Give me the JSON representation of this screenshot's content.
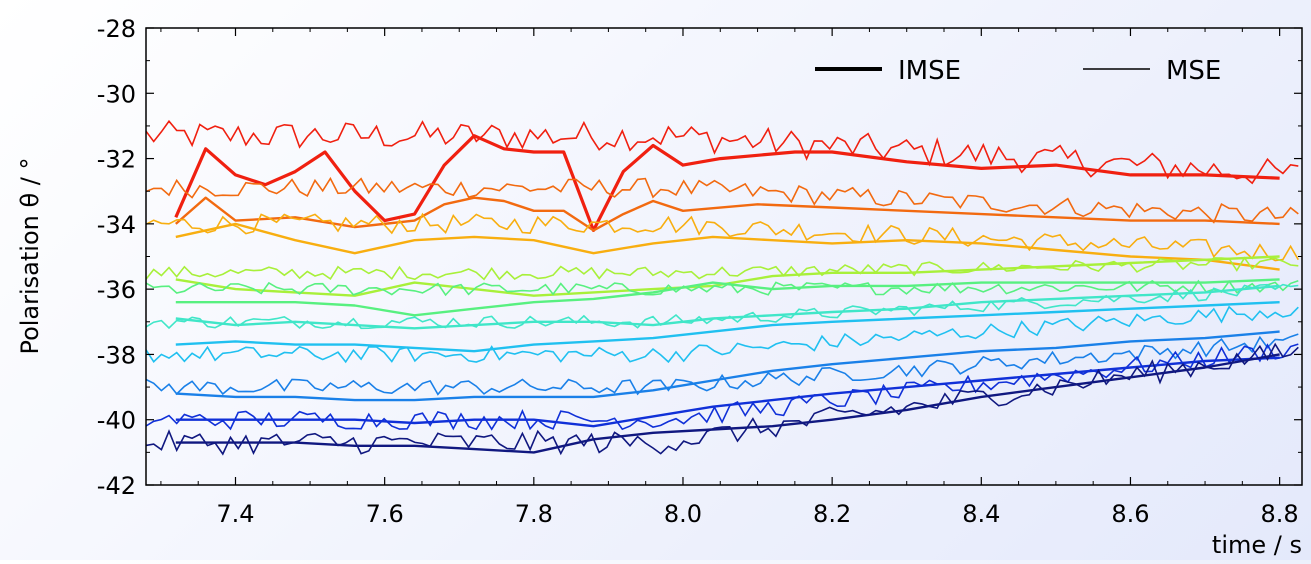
{
  "chart_data": {
    "type": "line",
    "xlabel": "time / s",
    "ylabel": "Polarisation θ / °",
    "xlim": [
      7.28,
      8.83
    ],
    "ylim": [
      -42,
      -28
    ],
    "x_ticks": [
      7.4,
      7.6,
      7.8,
      8.0,
      8.2,
      8.4,
      8.6,
      8.8
    ],
    "y_ticks": [
      -28,
      -30,
      -32,
      -34,
      -36,
      -38,
      -40,
      -42
    ],
    "x_tick_labels": [
      "7.4",
      "7.6",
      "7.8",
      "8.0",
      "8.2",
      "8.4",
      "8.6",
      "8.8"
    ],
    "y_tick_labels": [
      "-28",
      "-30",
      "-32",
      "-34",
      "-36",
      "-38",
      "-40",
      "-42"
    ],
    "grid": false,
    "legend": {
      "placement": "top-right",
      "entries": [
        {
          "label": "IMSE",
          "style": "thick"
        },
        {
          "label": "MSE",
          "style": "thin"
        }
      ]
    },
    "channels": [
      {
        "color": "#f02010",
        "imse": [
          [
            7.32,
            -33.8
          ],
          [
            7.36,
            -31.7
          ],
          [
            7.4,
            -32.5
          ],
          [
            7.44,
            -32.8
          ],
          [
            7.48,
            -32.4
          ],
          [
            7.52,
            -31.8
          ],
          [
            7.56,
            -33.0
          ],
          [
            7.6,
            -33.9
          ],
          [
            7.64,
            -33.7
          ],
          [
            7.68,
            -32.2
          ],
          [
            7.72,
            -31.3
          ],
          [
            7.76,
            -31.7
          ],
          [
            7.8,
            -31.8
          ],
          [
            7.84,
            -31.8
          ],
          [
            7.88,
            -34.2
          ],
          [
            7.92,
            -32.4
          ],
          [
            7.96,
            -31.6
          ],
          [
            8.0,
            -32.2
          ],
          [
            8.05,
            -32.0
          ],
          [
            8.1,
            -31.9
          ],
          [
            8.15,
            -31.8
          ],
          [
            8.2,
            -31.8
          ],
          [
            8.3,
            -32.1
          ],
          [
            8.4,
            -32.3
          ],
          [
            8.5,
            -32.2
          ],
          [
            8.6,
            -32.5
          ],
          [
            8.7,
            -32.5
          ],
          [
            8.8,
            -32.6
          ]
        ],
        "mse_base": -31.3,
        "mse_end": -32.5,
        "mse_noise": 0.45
      },
      {
        "color": "#f26a10",
        "imse": [
          [
            7.32,
            -34.0
          ],
          [
            7.36,
            -33.2
          ],
          [
            7.4,
            -33.9
          ],
          [
            7.48,
            -33.8
          ],
          [
            7.56,
            -34.1
          ],
          [
            7.64,
            -33.9
          ],
          [
            7.68,
            -33.4
          ],
          [
            7.72,
            -33.2
          ],
          [
            7.76,
            -33.3
          ],
          [
            7.8,
            -33.6
          ],
          [
            7.84,
            -33.6
          ],
          [
            7.88,
            -34.2
          ],
          [
            7.92,
            -33.7
          ],
          [
            7.96,
            -33.3
          ],
          [
            8.0,
            -33.6
          ],
          [
            8.1,
            -33.4
          ],
          [
            8.2,
            -33.5
          ],
          [
            8.3,
            -33.6
          ],
          [
            8.4,
            -33.7
          ],
          [
            8.5,
            -33.8
          ],
          [
            8.6,
            -33.9
          ],
          [
            8.7,
            -33.9
          ],
          [
            8.8,
            -34.0
          ]
        ],
        "mse_base": -32.9,
        "mse_end": -33.8,
        "mse_noise": 0.3
      },
      {
        "color": "#f8ae10",
        "imse": [
          [
            7.32,
            -34.4
          ],
          [
            7.4,
            -34.0
          ],
          [
            7.48,
            -34.5
          ],
          [
            7.56,
            -34.9
          ],
          [
            7.64,
            -34.5
          ],
          [
            7.72,
            -34.4
          ],
          [
            7.8,
            -34.5
          ],
          [
            7.88,
            -34.9
          ],
          [
            7.96,
            -34.6
          ],
          [
            8.04,
            -34.4
          ],
          [
            8.12,
            -34.5
          ],
          [
            8.2,
            -34.6
          ],
          [
            8.3,
            -34.5
          ],
          [
            8.4,
            -34.6
          ],
          [
            8.5,
            -34.8
          ],
          [
            8.6,
            -35.0
          ],
          [
            8.7,
            -35.1
          ],
          [
            8.8,
            -35.4
          ]
        ],
        "mse_base": -34.0,
        "mse_end": -34.9,
        "mse_noise": 0.3
      },
      {
        "color": "#a8f03a",
        "imse": [
          [
            7.32,
            -35.7
          ],
          [
            7.4,
            -36.0
          ],
          [
            7.48,
            -36.1
          ],
          [
            7.56,
            -36.2
          ],
          [
            7.64,
            -35.8
          ],
          [
            7.72,
            -36.0
          ],
          [
            7.8,
            -36.2
          ],
          [
            7.88,
            -36.1
          ],
          [
            7.96,
            -36.0
          ],
          [
            8.04,
            -35.9
          ],
          [
            8.12,
            -35.6
          ],
          [
            8.2,
            -35.5
          ],
          [
            8.3,
            -35.5
          ],
          [
            8.4,
            -35.4
          ],
          [
            8.5,
            -35.3
          ],
          [
            8.6,
            -35.2
          ],
          [
            8.7,
            -35.1
          ],
          [
            8.8,
            -35.0
          ]
        ],
        "mse_base": -35.5,
        "mse_end": -35.2,
        "mse_noise": 0.2
      },
      {
        "color": "#58f080",
        "imse": [
          [
            7.32,
            -36.4
          ],
          [
            7.4,
            -36.4
          ],
          [
            7.48,
            -36.4
          ],
          [
            7.56,
            -36.5
          ],
          [
            7.64,
            -36.8
          ],
          [
            7.72,
            -36.6
          ],
          [
            7.8,
            -36.4
          ],
          [
            7.88,
            -36.3
          ],
          [
            7.96,
            -36.1
          ],
          [
            8.04,
            -35.8
          ],
          [
            8.12,
            -36.0
          ],
          [
            8.2,
            -35.9
          ],
          [
            8.3,
            -35.9
          ],
          [
            8.4,
            -35.8
          ],
          [
            8.5,
            -35.8
          ],
          [
            8.6,
            -35.8
          ],
          [
            8.7,
            -35.8
          ],
          [
            8.8,
            -35.7
          ]
        ],
        "mse_base": -36.0,
        "mse_end": -35.9,
        "mse_noise": 0.2
      },
      {
        "color": "#40e6c8",
        "imse": [
          [
            7.32,
            -36.9
          ],
          [
            7.4,
            -37.1
          ],
          [
            7.48,
            -37.0
          ],
          [
            7.56,
            -37.1
          ],
          [
            7.64,
            -37.2
          ],
          [
            7.72,
            -37.1
          ],
          [
            7.8,
            -37.0
          ],
          [
            7.88,
            -37.0
          ],
          [
            7.96,
            -37.1
          ],
          [
            8.04,
            -36.9
          ],
          [
            8.12,
            -36.8
          ],
          [
            8.2,
            -36.7
          ],
          [
            8.3,
            -36.6
          ],
          [
            8.4,
            -36.4
          ],
          [
            8.5,
            -36.3
          ],
          [
            8.6,
            -36.2
          ],
          [
            8.7,
            -36.1
          ],
          [
            8.8,
            -35.9
          ]
        ],
        "mse_base": -37.0,
        "mse_end": -36.0,
        "mse_noise": 0.2
      },
      {
        "color": "#20c0f0",
        "imse": [
          [
            7.32,
            -37.7
          ],
          [
            7.4,
            -37.6
          ],
          [
            7.48,
            -37.7
          ],
          [
            7.56,
            -37.7
          ],
          [
            7.64,
            -37.8
          ],
          [
            7.72,
            -37.9
          ],
          [
            7.8,
            -37.7
          ],
          [
            7.88,
            -37.6
          ],
          [
            7.96,
            -37.5
          ],
          [
            8.04,
            -37.3
          ],
          [
            8.12,
            -37.1
          ],
          [
            8.2,
            -37.0
          ],
          [
            8.3,
            -36.9
          ],
          [
            8.4,
            -36.8
          ],
          [
            8.5,
            -36.7
          ],
          [
            8.6,
            -36.6
          ],
          [
            8.7,
            -36.5
          ],
          [
            8.8,
            -36.4
          ]
        ],
        "mse_base": -38.0,
        "mse_end": -36.6,
        "mse_noise": 0.25
      },
      {
        "color": "#1a80e8",
        "imse": [
          [
            7.32,
            -39.2
          ],
          [
            7.4,
            -39.3
          ],
          [
            7.48,
            -39.3
          ],
          [
            7.56,
            -39.4
          ],
          [
            7.64,
            -39.4
          ],
          [
            7.72,
            -39.3
          ],
          [
            7.8,
            -39.3
          ],
          [
            7.88,
            -39.3
          ],
          [
            7.96,
            -39.1
          ],
          [
            8.04,
            -38.8
          ],
          [
            8.12,
            -38.5
          ],
          [
            8.2,
            -38.3
          ],
          [
            8.3,
            -38.1
          ],
          [
            8.4,
            -37.9
          ],
          [
            8.5,
            -37.8
          ],
          [
            8.6,
            -37.6
          ],
          [
            8.7,
            -37.5
          ],
          [
            8.8,
            -37.3
          ]
        ],
        "mse_base": -39.0,
        "mse_end": -37.6,
        "mse_noise": 0.25
      },
      {
        "color": "#1030d8",
        "imse": [
          [
            7.32,
            -40.0
          ],
          [
            7.4,
            -40.0
          ],
          [
            7.48,
            -40.0
          ],
          [
            7.56,
            -40.0
          ],
          [
            7.64,
            -40.1
          ],
          [
            7.72,
            -40.0
          ],
          [
            7.8,
            -40.0
          ],
          [
            7.88,
            -40.2
          ],
          [
            7.96,
            -39.9
          ],
          [
            8.04,
            -39.6
          ],
          [
            8.12,
            -39.4
          ],
          [
            8.2,
            -39.2
          ],
          [
            8.3,
            -39.0
          ],
          [
            8.4,
            -38.8
          ],
          [
            8.5,
            -38.6
          ],
          [
            8.6,
            -38.4
          ],
          [
            8.7,
            -38.2
          ],
          [
            8.8,
            -38.1
          ]
        ],
        "mse_base": -40.0,
        "mse_end": -37.8,
        "mse_noise": 0.3
      },
      {
        "color": "#101880",
        "imse": [
          [
            7.32,
            -40.7
          ],
          [
            7.4,
            -40.7
          ],
          [
            7.48,
            -40.7
          ],
          [
            7.56,
            -40.8
          ],
          [
            7.64,
            -40.8
          ],
          [
            7.72,
            -40.9
          ],
          [
            7.8,
            -41.0
          ],
          [
            7.88,
            -40.6
          ],
          [
            7.96,
            -40.4
          ],
          [
            8.04,
            -40.3
          ],
          [
            8.12,
            -40.2
          ],
          [
            8.2,
            -40.0
          ],
          [
            8.3,
            -39.7
          ],
          [
            8.4,
            -39.3
          ],
          [
            8.5,
            -39.0
          ],
          [
            8.6,
            -38.7
          ],
          [
            8.7,
            -38.4
          ],
          [
            8.8,
            -38.0
          ]
        ],
        "mse_base": -40.7,
        "mse_end": -37.9,
        "mse_noise": 0.35
      }
    ]
  }
}
